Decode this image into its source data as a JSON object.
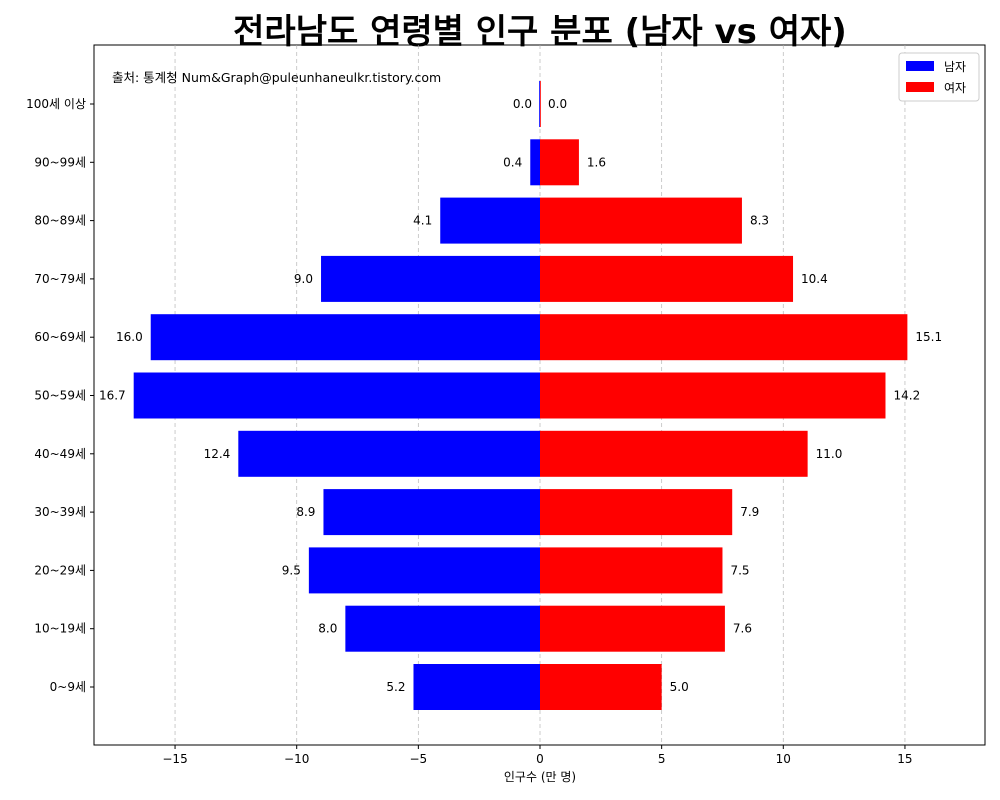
{
  "chart_data": {
    "type": "bar",
    "orientation": "horizontal-population-pyramid",
    "title": "전라남도 연령별 인구 분포 (남자 vs 여자)",
    "source_note": "출처: 통계청 Num&Graph@puleunhaneulkr.tistory.com",
    "xlabel": "인구수 (만 명)",
    "ylabel": "",
    "xlim": [
      -18.5,
      18.5
    ],
    "x_ticks": [
      -15,
      -10,
      -5,
      0,
      5,
      10,
      15
    ],
    "x_tick_labels": [
      "−15",
      "−10",
      "−5",
      "0",
      "5",
      "10",
      "15"
    ],
    "grid": "vertical dashed",
    "legend_position": "top-right",
    "categories": [
      "0~9세",
      "10~19세",
      "20~29세",
      "30~39세",
      "40~49세",
      "50~59세",
      "60~69세",
      "70~79세",
      "80~89세",
      "90~99세",
      "100세 이상"
    ],
    "series": [
      {
        "name": "남자",
        "color": "#0000ff",
        "values": [
          5.2,
          8.0,
          9.5,
          8.9,
          12.4,
          16.7,
          16.0,
          9.0,
          4.1,
          0.4,
          0.0
        ]
      },
      {
        "name": "여자",
        "color": "#ff0000",
        "values": [
          5.0,
          7.6,
          7.5,
          7.9,
          11.0,
          14.2,
          15.1,
          10.4,
          8.3,
          1.6,
          0.0
        ]
      }
    ]
  }
}
